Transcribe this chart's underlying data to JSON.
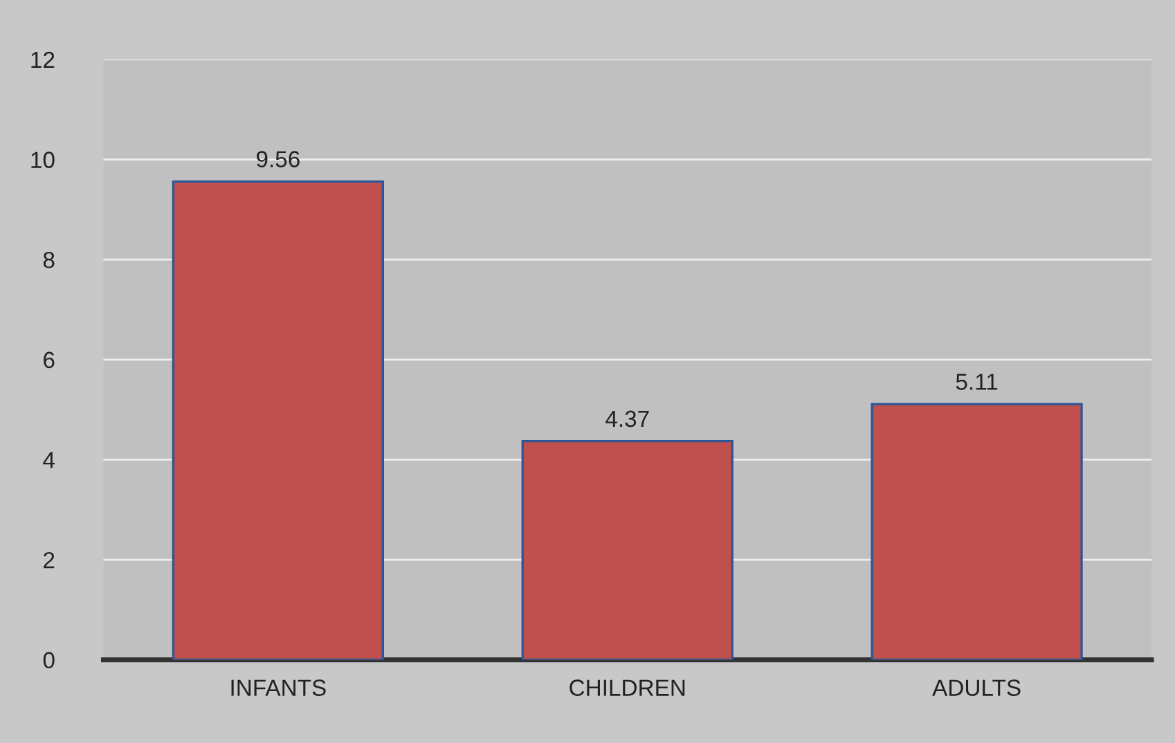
{
  "chart_data": {
    "type": "bar",
    "categories": [
      "INFANTS",
      "CHILDREN",
      "ADULTS"
    ],
    "values": [
      9.56,
      4.37,
      5.11
    ],
    "color": "#c0504d",
    "ylim": [
      0,
      12
    ],
    "yticks": [
      0,
      2,
      4,
      6,
      8,
      10,
      12
    ],
    "grid": "y",
    "data_labels": true
  }
}
